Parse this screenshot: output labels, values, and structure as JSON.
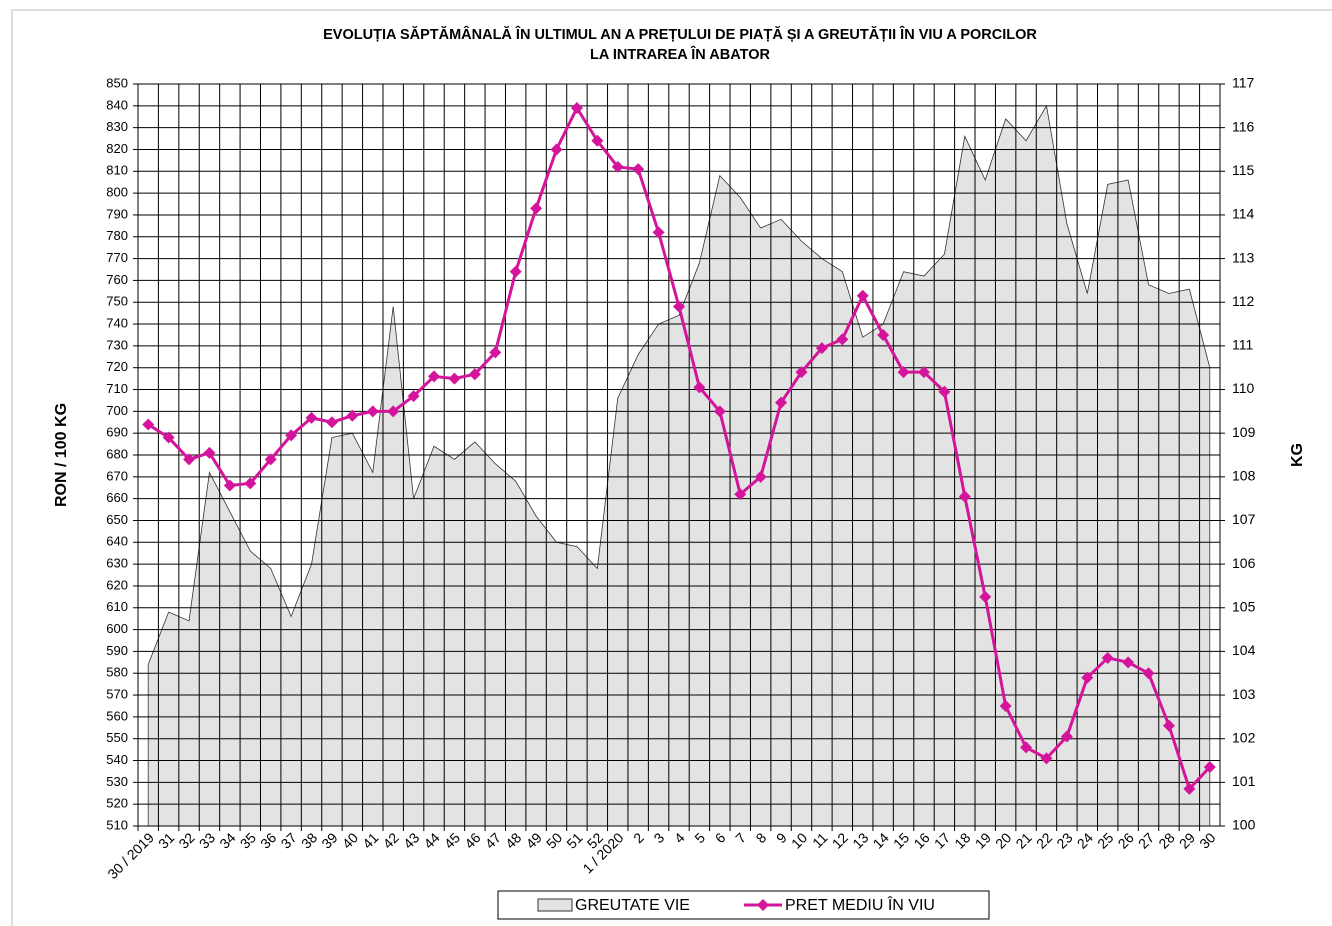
{
  "chart_data": {
    "type": "combo",
    "title": [
      "EVOLUȚIA SĂPTĂMÂNALĂ ÎN ULTIMUL  AN A PREȚULUI  DE PIAȚĂ ȘI A GREUTĂȚII  ÎN VIU A PORCILOR",
      "LA INTRAREA ÎN ABATOR"
    ],
    "y_label": "RON / 100 KG",
    "y2_label": "KG",
    "categories": [
      "30 / 2019",
      "31",
      "32",
      "33",
      "34",
      "35",
      "36",
      "37",
      "38",
      "39",
      "40",
      "41",
      "42",
      "43",
      "44",
      "45",
      "46",
      "47",
      "48",
      "49",
      "50",
      "51",
      "52",
      "1 / 2020",
      "2",
      "3",
      "4",
      "5",
      "6",
      "7",
      "8",
      "9",
      "10",
      "11",
      "12",
      "13",
      "14",
      "15",
      "16",
      "17",
      "18",
      "19",
      "20",
      "21",
      "22",
      "23",
      "24",
      "25",
      "26",
      "27",
      "28",
      "29",
      "30"
    ],
    "series": [
      {
        "name": "GREUTATE VIE",
        "type": "area",
        "axis": "y2",
        "color": "#e3e3e3",
        "values": [
          103.7,
          104.9,
          104.7,
          108.1,
          107.2,
          106.3,
          105.9,
          104.8,
          106.0,
          108.9,
          109.0,
          108.1,
          111.9,
          107.5,
          108.7,
          108.4,
          108.8,
          108.3,
          107.9,
          107.1,
          106.5,
          106.4,
          105.9,
          109.8,
          110.8,
          111.5,
          111.7,
          112.9,
          114.9,
          114.4,
          113.7,
          113.9,
          113.4,
          113.0,
          112.7,
          111.2,
          111.5,
          112.7,
          112.6,
          113.1,
          115.8,
          114.8,
          116.2,
          115.7,
          116.5,
          113.8,
          112.2,
          114.7,
          114.8,
          112.4,
          112.2,
          112.3,
          110.5
        ]
      },
      {
        "name": "PRET MEDIU ÎN VIU",
        "type": "line",
        "axis": "y",
        "color": "#d4159c",
        "values": [
          694,
          688,
          678,
          681,
          666,
          667,
          678,
          689,
          697,
          695,
          698,
          700,
          700,
          707,
          716,
          715,
          717,
          727,
          764,
          793,
          820,
          839,
          824,
          812,
          811,
          782,
          748,
          711,
          700,
          662,
          670,
          704,
          718,
          729,
          733,
          753,
          735,
          718,
          718,
          709,
          661,
          615,
          565,
          546,
          541,
          551,
          578,
          587,
          585,
          580,
          556,
          527,
          537
        ]
      }
    ],
    "ylim": [
      510,
      850
    ],
    "yticks": [
      510,
      520,
      530,
      540,
      550,
      560,
      570,
      580,
      590,
      600,
      610,
      620,
      630,
      640,
      650,
      660,
      670,
      680,
      690,
      700,
      710,
      720,
      730,
      740,
      750,
      760,
      770,
      780,
      790,
      800,
      810,
      820,
      830,
      840,
      850
    ],
    "y2lim": [
      100,
      117
    ],
    "y2ticks": [
      100,
      101,
      102,
      103,
      104,
      105,
      106,
      107,
      108,
      109,
      110,
      111,
      112,
      113,
      114,
      115,
      116,
      117
    ],
    "grid": true
  }
}
